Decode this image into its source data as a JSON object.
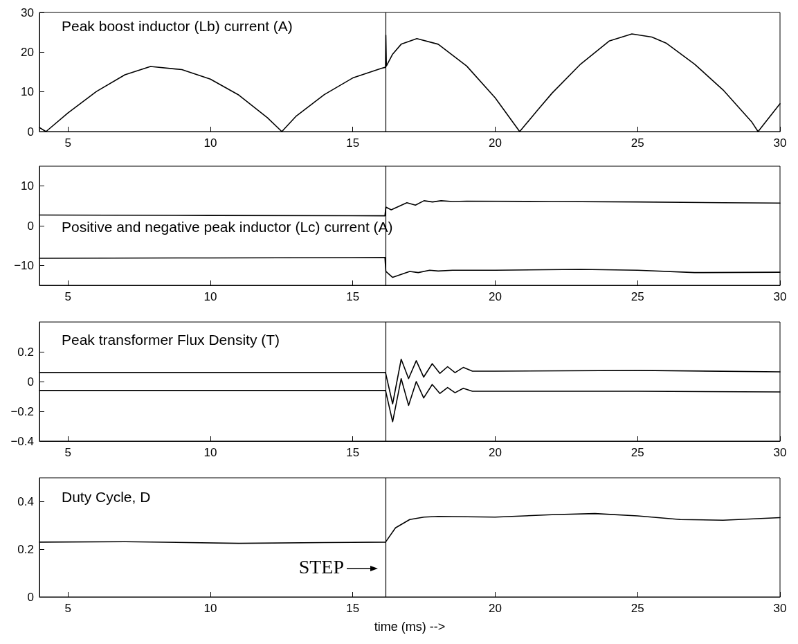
{
  "chart_data": [
    {
      "type": "line",
      "title": "Peak boost inductor (Lb) current (A)",
      "xlim": [
        4,
        30
      ],
      "xticks": [
        5,
        10,
        15,
        20,
        25,
        30
      ],
      "ylim": [
        0,
        30
      ],
      "yticks": [
        0,
        10,
        20,
        30
      ],
      "grid": false,
      "series": [
        {
          "color": "#000000",
          "x": [
            4.0,
            4.23,
            5,
            6,
            7,
            7.9,
            9,
            10,
            11,
            12,
            12.51,
            13,
            14,
            15,
            16,
            16.15,
            16.16,
            16.18,
            16.4,
            16.7,
            17.25,
            18,
            19,
            20,
            20.86,
            21.5,
            22,
            23,
            24,
            24.8,
            25.5,
            26,
            27,
            28,
            29,
            29.23,
            30
          ],
          "values": [
            1.0,
            0,
            4.7,
            10.1,
            14.3,
            16.4,
            15.6,
            13.2,
            9.2,
            3.5,
            0,
            3.8,
            9.3,
            13.5,
            15.9,
            16.2,
            24.3,
            16.5,
            19.5,
            22,
            23.4,
            22,
            16.5,
            8.5,
            0,
            5.5,
            9.7,
            17,
            22.8,
            24.6,
            23.8,
            22.3,
            17,
            10.5,
            2.5,
            0,
            7
          ]
        }
      ],
      "ref_lines": [
        {
          "axis": "x",
          "value": 16.15,
          "color": "#000000"
        }
      ]
    },
    {
      "type": "line",
      "title": "Positive and negative peak inductor (Lc) current (A)",
      "xlim": [
        4,
        30
      ],
      "xticks": [
        5,
        10,
        15,
        20,
        25,
        30
      ],
      "ylim": [
        -15,
        15
      ],
      "yticks": [
        -10,
        0,
        10
      ],
      "grid": false,
      "series": [
        {
          "color": "#000000",
          "x": [
            4,
            10,
            16.13,
            16.16,
            16.35,
            16.9,
            17.2,
            17.5,
            17.8,
            18.1,
            18.5,
            19,
            22,
            25,
            28,
            30
          ],
          "values": [
            2.7,
            2.6,
            2.5,
            4.7,
            4.0,
            5.8,
            5.2,
            6.3,
            6.0,
            6.3,
            6.1,
            6.2,
            6.1,
            6.0,
            5.8,
            5.7
          ]
        },
        {
          "color": "#000000",
          "x": [
            4,
            10,
            16.13,
            16.16,
            16.4,
            17,
            17.3,
            17.7,
            18,
            18.5,
            20,
            23,
            25,
            27,
            30
          ],
          "values": [
            -8.2,
            -8.1,
            -8.0,
            -11.5,
            -13.0,
            -11.5,
            -11.8,
            -11.2,
            -11.4,
            -11.2,
            -11.2,
            -11.0,
            -11.2,
            -11.8,
            -11.7
          ]
        }
      ],
      "ref_lines": [
        {
          "axis": "x",
          "value": 16.15,
          "color": "#000000"
        }
      ]
    },
    {
      "type": "line",
      "title": "Peak transformer Flux Density (T)",
      "xlim": [
        4,
        30
      ],
      "xticks": [
        5,
        10,
        15,
        20,
        25,
        30
      ],
      "ylim": [
        -0.4,
        0.4
      ],
      "yticks": [
        -0.4,
        -0.2,
        0,
        0.2
      ],
      "grid": false,
      "series": [
        {
          "color": "#000000",
          "x": [
            4,
            16.15,
            16.4,
            16.7,
            16.96,
            17.23,
            17.49,
            17.79,
            18.06,
            18.33,
            18.59,
            18.88,
            19.2,
            20,
            25,
            30
          ],
          "values": [
            0.06,
            0.06,
            -0.15,
            0.15,
            0.02,
            0.14,
            0.03,
            0.12,
            0.055,
            0.1,
            0.06,
            0.095,
            0.07,
            0.07,
            0.075,
            0.065
          ]
        },
        {
          "color": "#000000",
          "x": [
            4,
            16.15,
            16.4,
            16.7,
            16.96,
            17.23,
            17.49,
            17.79,
            18.06,
            18.33,
            18.59,
            18.88,
            19.2,
            20,
            25,
            30
          ],
          "values": [
            -0.06,
            -0.06,
            -0.27,
            0.02,
            -0.16,
            0.0,
            -0.11,
            -0.02,
            -0.08,
            -0.04,
            -0.075,
            -0.045,
            -0.065,
            -0.065,
            -0.065,
            -0.07
          ]
        }
      ],
      "ref_lines": [
        {
          "axis": "x",
          "value": 16.15,
          "color": "#000000"
        }
      ]
    },
    {
      "type": "line",
      "title": "Duty Cycle, D",
      "xlabel": "time (ms) -->",
      "xlim": [
        4,
        30
      ],
      "xticks": [
        5,
        10,
        15,
        20,
        25,
        30
      ],
      "ylim": [
        0,
        0.5
      ],
      "yticks": [
        0,
        0.2,
        0.4
      ],
      "grid": false,
      "series": [
        {
          "color": "#000000",
          "x": [
            4,
            7,
            11,
            14,
            16.15,
            16.5,
            17,
            17.5,
            18,
            20,
            22,
            23.5,
            25,
            26.5,
            28,
            30
          ],
          "values": [
            0.23,
            0.232,
            0.225,
            0.228,
            0.23,
            0.29,
            0.325,
            0.335,
            0.338,
            0.335,
            0.345,
            0.35,
            0.34,
            0.325,
            0.322,
            0.333
          ]
        }
      ],
      "ref_lines": [
        {
          "axis": "x",
          "value": 16.15,
          "color": "#000000"
        }
      ],
      "annotations": [
        {
          "text": "STEP",
          "x": 16.15,
          "y": 0.12
        }
      ]
    }
  ]
}
